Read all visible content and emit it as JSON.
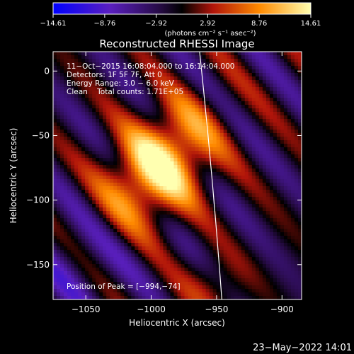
{
  "chart_data": {
    "type": "heatmap",
    "title": "Reconstructed RHESSI Image",
    "xlabel": "Heliocentric X (arcsec)",
    "ylabel": "Heliocentric Y (arcsec)",
    "xlim": [
      -1075,
      -885
    ],
    "ylim": [
      -177,
      15
    ],
    "x_ticks": [
      -1050,
      -1000,
      -950,
      -900
    ],
    "x_tick_labels": [
      "−1050",
      "−1000",
      "−950",
      "−900"
    ],
    "y_ticks": [
      0,
      -50,
      -100,
      -150
    ],
    "y_tick_labels": [
      "0",
      "−50",
      "−100",
      "−150"
    ],
    "colorbar": {
      "range": [
        -14.61,
        14.61
      ],
      "ticks": [
        -14.61,
        -8.76,
        -2.92,
        2.92,
        8.76,
        14.61
      ],
      "tick_labels": [
        "−14.61",
        "−8.76",
        "−2.92",
        "2.92",
        "8.76",
        "14.61"
      ],
      "unit_label": "(photons cm⁻² s⁻¹ asec⁻²)",
      "colormap": [
        "#0000ff",
        "#6a1fa8",
        "#000000",
        "#c0150a",
        "#ff9a00",
        "#ffff9a"
      ]
    },
    "annotations": [
      "11−Oct−2015 16:08:04.000 to 16:14:04.000",
      "Detectors: 1F 5F 7F, Att 0",
      "Energy Range: 3.0 − 6.0 keV",
      "Clean    Total counts: 1.71E+05"
    ],
    "peak_text": "Position of Peak = [−994,−74]",
    "peak": {
      "x": -994,
      "y": -74,
      "value": 14.61
    },
    "limb_line": [
      [
        -963,
        15
      ],
      [
        -946,
        -177
      ]
    ],
    "grid": false,
    "footer_date": "23−May−2022 14:01"
  }
}
